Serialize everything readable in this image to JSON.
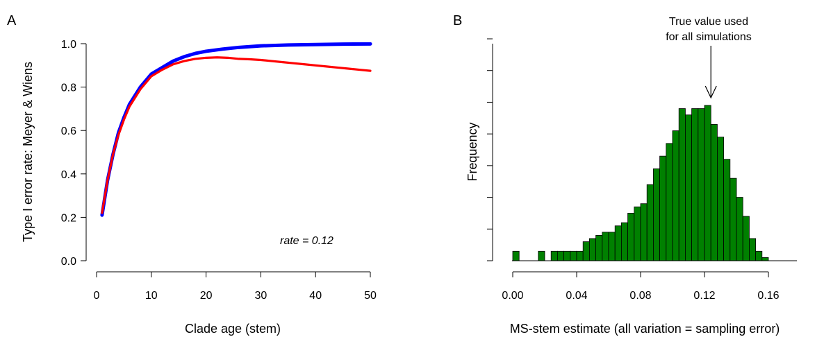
{
  "chart_data": [
    {
      "panel_label": "A",
      "type": "line",
      "xlabel": "Clade age (stem)",
      "ylabel": "Type I error rate: Meyer & Wiens",
      "xlim": [
        0,
        50
      ],
      "ylim": [
        0,
        1
      ],
      "xticks": [
        0,
        10,
        20,
        30,
        40,
        50
      ],
      "yticks": [
        "0.0",
        "0.2",
        "0.4",
        "0.6",
        "0.8",
        "1.0"
      ],
      "annotation": "rate = 0.12",
      "grid": false,
      "series": [
        {
          "color": "#0000ff",
          "x": [
            1,
            2,
            3,
            4,
            5,
            6,
            7,
            8,
            10,
            12,
            14,
            16,
            18,
            20,
            23,
            26,
            30,
            35,
            40,
            45,
            50
          ],
          "y": [
            0.21,
            0.37,
            0.49,
            0.59,
            0.66,
            0.72,
            0.76,
            0.8,
            0.86,
            0.89,
            0.92,
            0.94,
            0.955,
            0.965,
            0.975,
            0.983,
            0.99,
            0.994,
            0.996,
            0.998,
            0.999
          ]
        },
        {
          "color": "#ff0000",
          "x": [
            1,
            2,
            3,
            4,
            5,
            6,
            7,
            8,
            10,
            12,
            14,
            16,
            18,
            20,
            22,
            24,
            26,
            28,
            30,
            32,
            34,
            36,
            38,
            40,
            42,
            44,
            46,
            48,
            50
          ],
          "y": [
            0.22,
            0.37,
            0.49,
            0.58,
            0.65,
            0.71,
            0.75,
            0.79,
            0.85,
            0.88,
            0.905,
            0.92,
            0.93,
            0.935,
            0.937,
            0.935,
            0.93,
            0.928,
            0.925,
            0.92,
            0.915,
            0.91,
            0.905,
            0.9,
            0.895,
            0.89,
            0.885,
            0.88,
            0.875
          ]
        }
      ]
    },
    {
      "panel_label": "B",
      "type": "bar",
      "xlabel": "MS-stem estimate (all variation = sampling error)",
      "ylabel": "Frequency",
      "xticks": [
        "0.00",
        "0.04",
        "0.08",
        "0.12",
        "0.16"
      ],
      "xlim": [
        0,
        0.176
      ],
      "bin_width": 0.004,
      "bar_color": "#008000",
      "annotation": [
        "True value used",
        "for all simulations"
      ],
      "true_value": 0.124,
      "bins_start": 0,
      "counts": [
        3,
        0,
        0,
        0,
        3,
        0,
        3,
        3,
        3,
        3,
        3,
        6,
        7,
        8,
        9,
        9,
        11,
        12,
        15,
        17,
        18,
        24,
        29,
        33,
        37,
        41,
        48,
        46,
        48,
        48,
        49,
        43,
        39,
        32,
        26,
        20,
        14,
        7,
        3,
        1,
        0,
        0,
        0,
        0
      ]
    }
  ]
}
